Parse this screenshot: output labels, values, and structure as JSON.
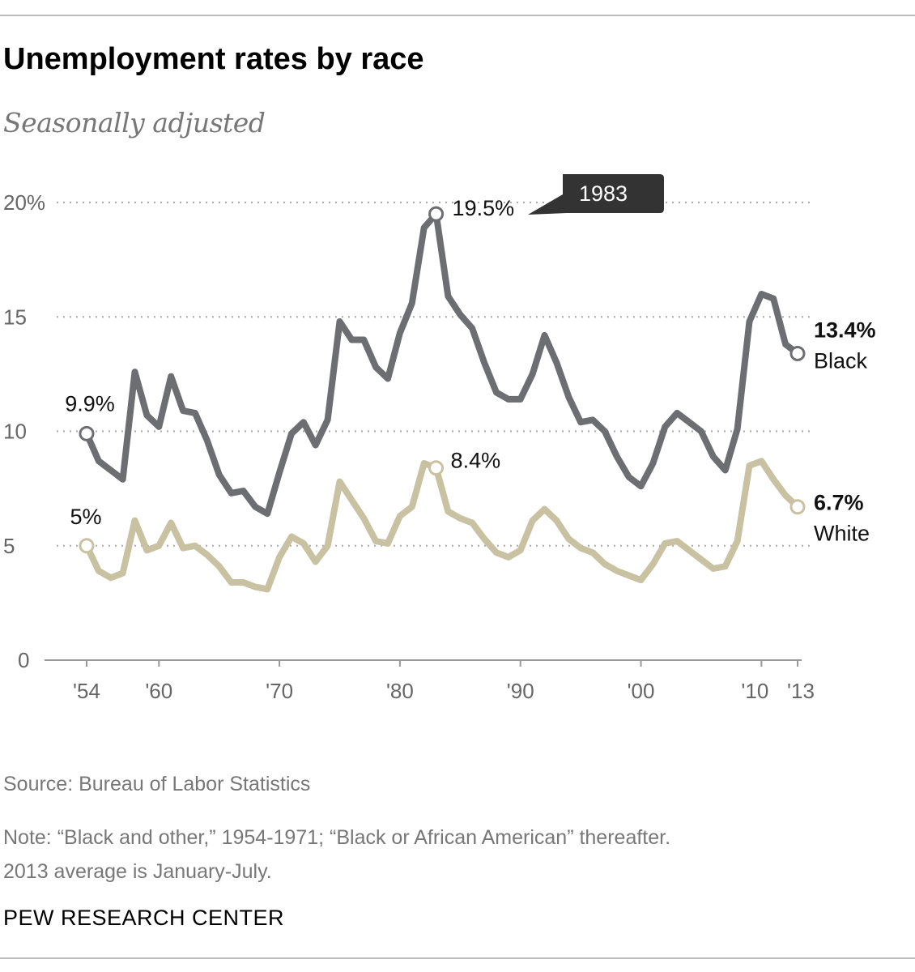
{
  "header": {
    "title": "Unemployment rates by race",
    "subtitle": "Seasonally adjusted"
  },
  "footer": {
    "source": "Source: Bureau of Labor Statistics",
    "note_line1": "Note: “Black and other,” 1954-1971; “Black or African American” thereafter.",
    "note_line2": "2013 average is January-July.",
    "brand": "PEW RESEARCH CENTER"
  },
  "chart_data": {
    "type": "line",
    "title": "Unemployment rates by race",
    "subtitle": "Seasonally adjusted",
    "x": [
      1954,
      1955,
      1956,
      1957,
      1958,
      1959,
      1960,
      1961,
      1962,
      1963,
      1964,
      1965,
      1966,
      1967,
      1968,
      1969,
      1970,
      1971,
      1972,
      1973,
      1974,
      1975,
      1976,
      1977,
      1978,
      1979,
      1980,
      1981,
      1982,
      1983,
      1984,
      1985,
      1986,
      1987,
      1988,
      1989,
      1990,
      1991,
      1992,
      1993,
      1994,
      1995,
      1996,
      1997,
      1998,
      1999,
      2000,
      2001,
      2002,
      2003,
      2004,
      2005,
      2006,
      2007,
      2008,
      2009,
      2010,
      2011,
      2012,
      2013
    ],
    "xlim": [
      1954,
      2013
    ],
    "ylim": [
      0,
      20
    ],
    "y_ticks": [
      0,
      5,
      10,
      15,
      20
    ],
    "y_tick_labels": [
      "0",
      "5",
      "10",
      "15",
      "20%"
    ],
    "x_ticks": [
      1954,
      1960,
      1970,
      1980,
      1990,
      2000,
      2010,
      2013
    ],
    "x_tick_labels": [
      "'54",
      "'60",
      "'70",
      "'80",
      "'90",
      "'00",
      "'10",
      "'13"
    ],
    "grid": true,
    "series": [
      {
        "name": "Black",
        "color": "#6d6e71",
        "values": [
          9.9,
          8.7,
          8.3,
          7.9,
          12.6,
          10.7,
          10.2,
          12.4,
          10.9,
          10.8,
          9.6,
          8.1,
          7.3,
          7.4,
          6.7,
          6.4,
          8.2,
          9.9,
          10.4,
          9.4,
          10.5,
          14.8,
          14.0,
          14.0,
          12.8,
          12.3,
          14.3,
          15.6,
          18.9,
          19.5,
          15.9,
          15.1,
          14.5,
          13.0,
          11.7,
          11.4,
          11.4,
          12.5,
          14.2,
          13.0,
          11.5,
          10.4,
          10.5,
          10.0,
          8.9,
          8.0,
          7.6,
          8.6,
          10.2,
          10.8,
          10.4,
          10.0,
          8.9,
          8.3,
          10.1,
          14.8,
          16.0,
          15.8,
          13.8,
          13.4
        ]
      },
      {
        "name": "White",
        "color": "#c8c2a2",
        "values": [
          5.0,
          3.9,
          3.6,
          3.8,
          6.1,
          4.8,
          5.0,
          6.0,
          4.9,
          5.0,
          4.6,
          4.1,
          3.4,
          3.4,
          3.2,
          3.1,
          4.5,
          5.4,
          5.1,
          4.3,
          5.0,
          7.8,
          7.0,
          6.2,
          5.2,
          5.1,
          6.3,
          6.7,
          8.6,
          8.4,
          6.5,
          6.2,
          6.0,
          5.3,
          4.7,
          4.5,
          4.8,
          6.1,
          6.6,
          6.1,
          5.3,
          4.9,
          4.7,
          4.2,
          3.9,
          3.7,
          3.5,
          4.2,
          5.1,
          5.2,
          4.8,
          4.4,
          4.0,
          4.1,
          5.2,
          8.5,
          8.7,
          7.9,
          7.2,
          6.7
        ]
      }
    ],
    "annotations": [
      {
        "series": "Black",
        "x": 1954,
        "label": "9.9%"
      },
      {
        "series": "White",
        "x": 1954,
        "label": "5%"
      },
      {
        "series": "Black",
        "x": 1983,
        "label": "19.5%",
        "callout": "1983"
      },
      {
        "series": "White",
        "x": 1983,
        "label": "8.4%"
      },
      {
        "series": "Black",
        "x": 2013,
        "label": "13.4%",
        "series_label": "Black"
      },
      {
        "series": "White",
        "x": 2013,
        "label": "6.7%",
        "series_label": "White"
      }
    ]
  }
}
